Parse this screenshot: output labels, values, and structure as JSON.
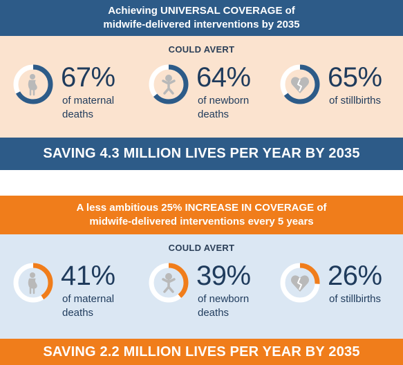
{
  "colors": {
    "navy": "#2d5b88",
    "orange": "#f07d1b",
    "peach_panel": "#fbe3cf",
    "blue_panel": "#dbe7f3",
    "text_dark": "#1f3b5c",
    "ring_track": "#ffffff"
  },
  "scenario_1": {
    "header_line1": "Achieving UNIVERSAL COVERAGE of",
    "header_line2": "midwife-delivered interventions by 2035",
    "could_avert": "COULD AVERT",
    "stats": [
      {
        "icon": "pregnant-woman-icon",
        "value": "67%",
        "fraction": 0.67,
        "label_line1": "of maternal",
        "label_line2": "deaths"
      },
      {
        "icon": "baby-icon",
        "value": "64%",
        "fraction": 0.64,
        "label_line1": "of newborn",
        "label_line2": "deaths"
      },
      {
        "icon": "broken-heart-icon",
        "value": "65%",
        "fraction": 0.65,
        "label_line1": "of stillbirths",
        "label_line2": ""
      }
    ],
    "footer": "SAVING 4.3 MILLION LIVES PER YEAR BY 2035"
  },
  "scenario_2": {
    "header_line1": "A less ambitious 25% INCREASE IN COVERAGE of",
    "header_line2": "midwife-delivered interventions every 5 years",
    "could_avert": "COULD AVERT",
    "stats": [
      {
        "icon": "pregnant-woman-icon",
        "value": "41%",
        "fraction": 0.41,
        "label_line1": "of maternal",
        "label_line2": "deaths"
      },
      {
        "icon": "baby-icon",
        "value": "39%",
        "fraction": 0.39,
        "label_line1": "of newborn",
        "label_line2": "deaths"
      },
      {
        "icon": "broken-heart-icon",
        "value": "26%",
        "fraction": 0.26,
        "label_line1": "of stillbirths",
        "label_line2": ""
      }
    ],
    "footer": "SAVING 2.2 MILLION LIVES PER YEAR BY 2035"
  }
}
